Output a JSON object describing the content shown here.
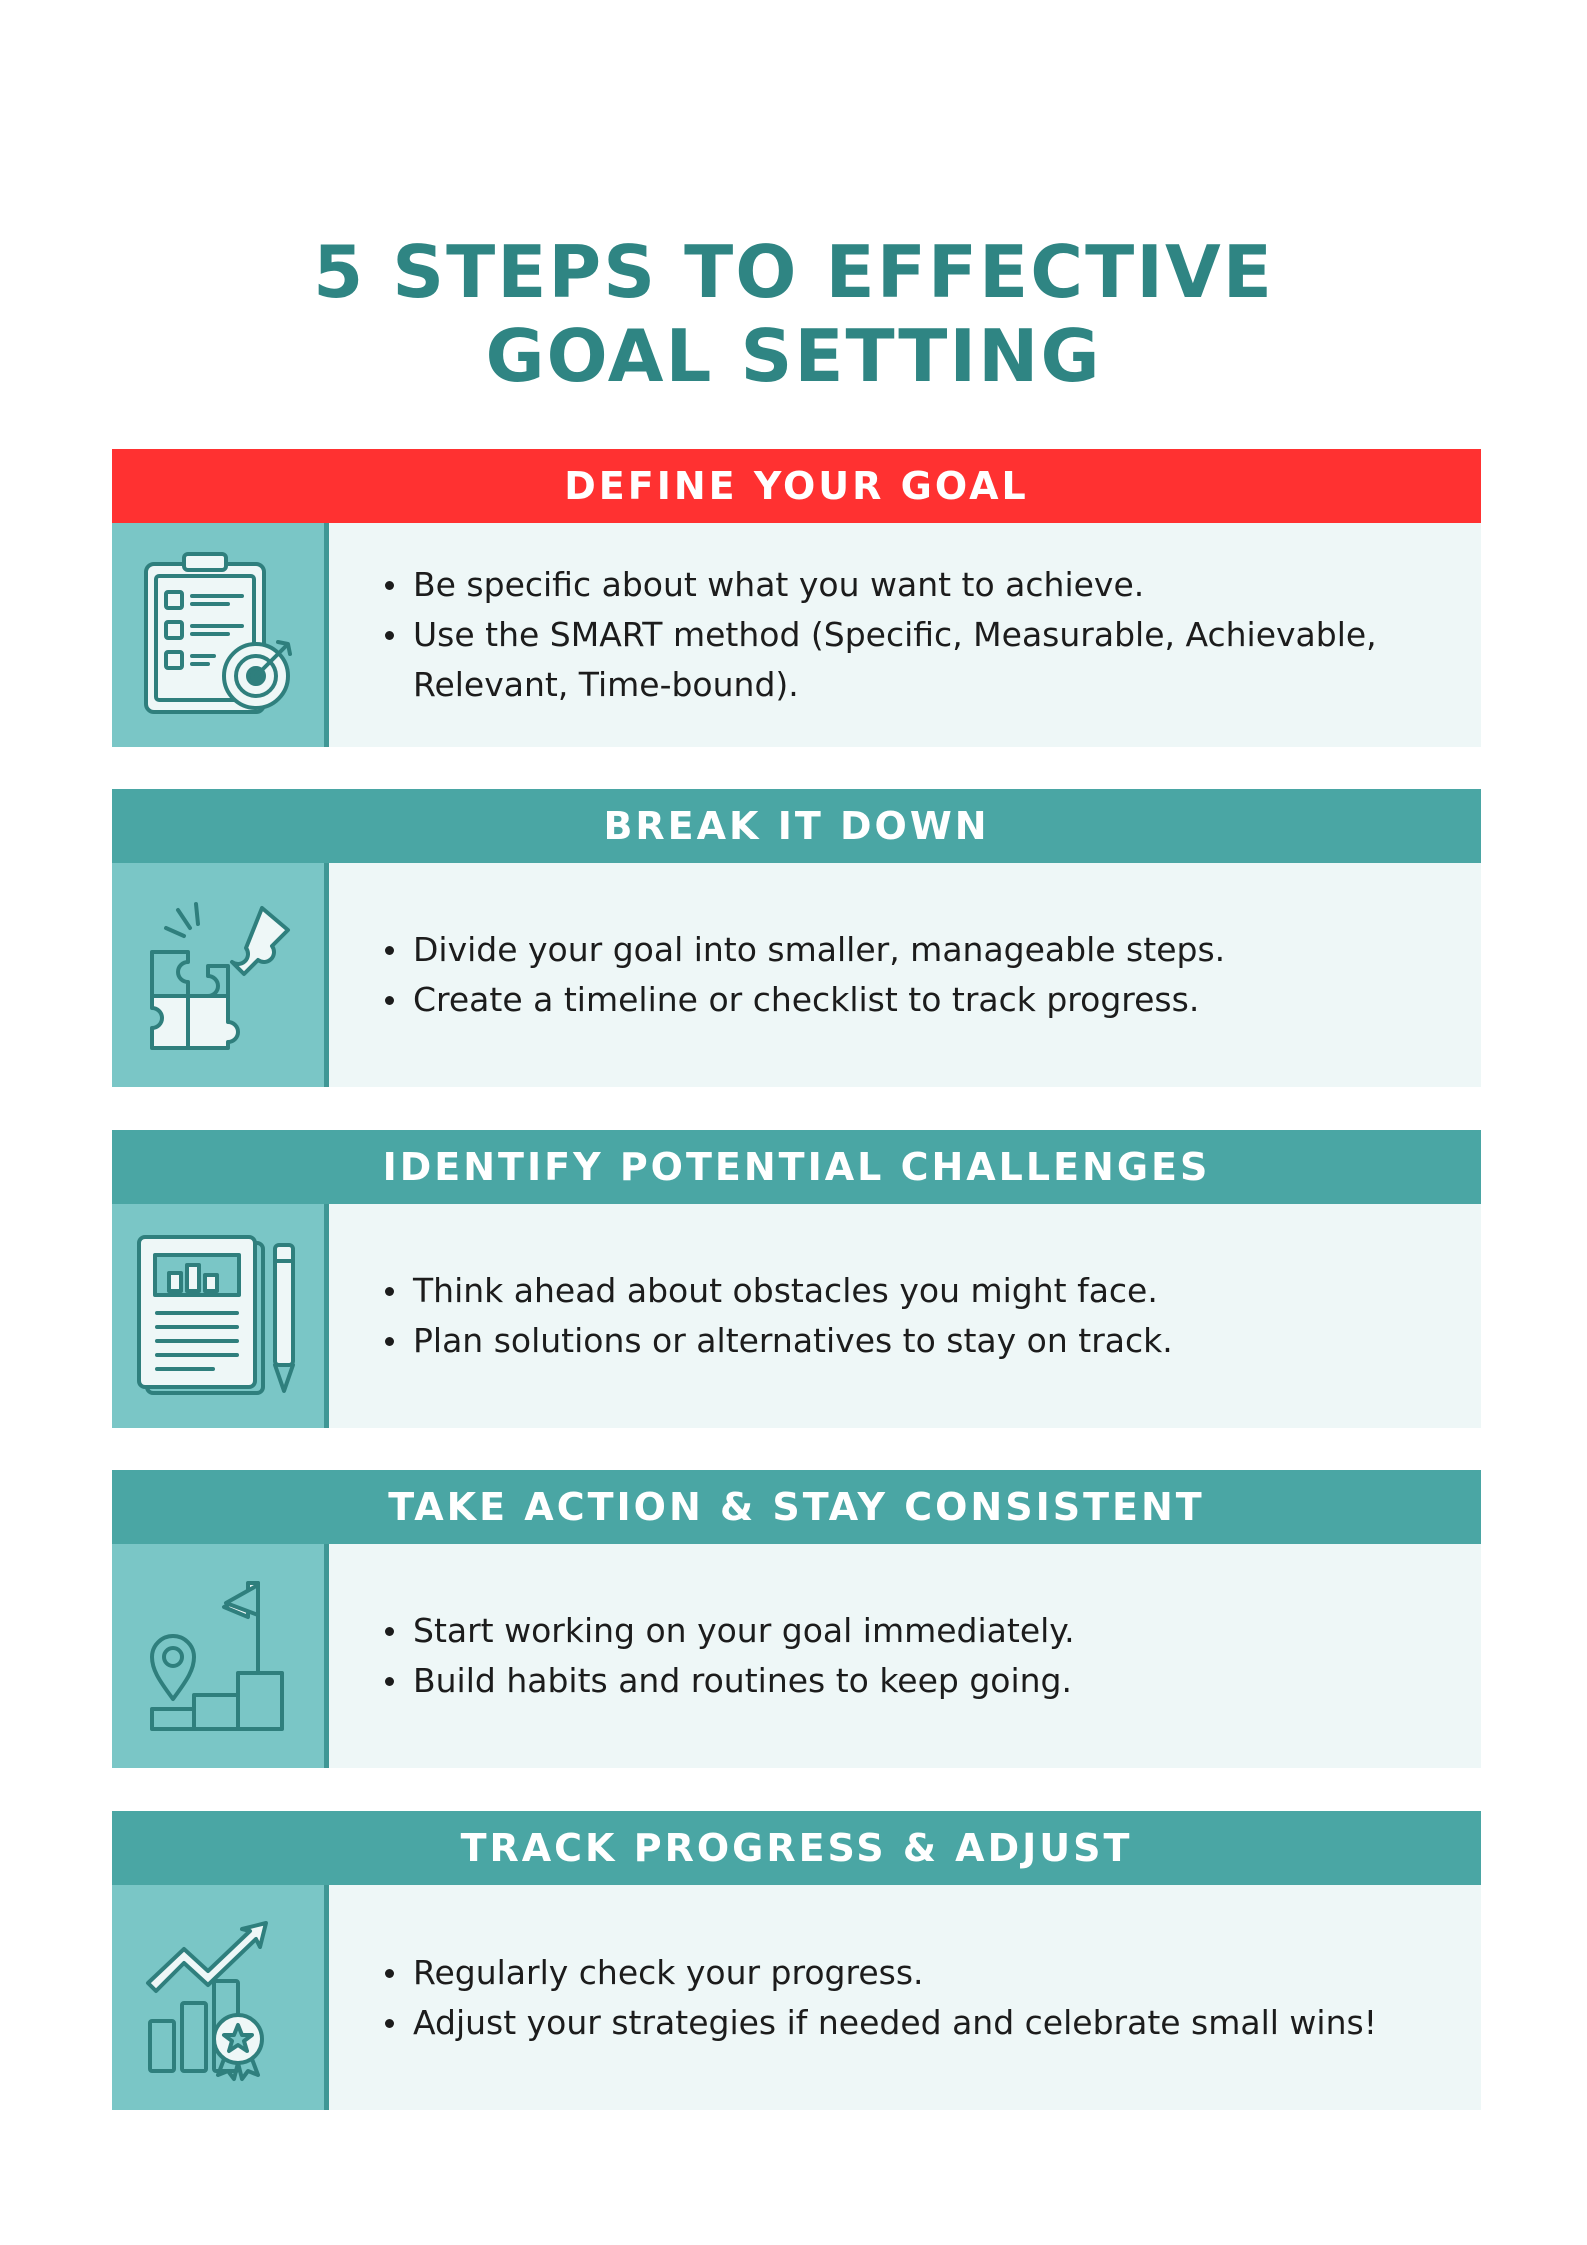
{
  "title": {
    "line1": "5 STEPS TO EFFECTIVE",
    "line2": "GOAL SETTING"
  },
  "colors": {
    "title": "#2f8583",
    "highlight_header": "#ff3131",
    "header": "#4aa6a4",
    "icon_panel": "#7ac6c6",
    "text_panel": "#eef7f7"
  },
  "steps": [
    {
      "heading": "DEFINE YOUR GOAL",
      "icon": "clipboard-target-icon",
      "bullets": [
        "Be specific about what you want to achieve.",
        "Use the SMART method (Specific, Measurable, Achievable, Relevant, Time-bound)."
      ]
    },
    {
      "heading": "BREAK IT DOWN",
      "icon": "puzzle-icon",
      "bullets": [
        "Divide your goal into smaller, manageable steps.",
        "Create a timeline or checklist to track progress."
      ]
    },
    {
      "heading": "IDENTIFY POTENTIAL CHALLENGES",
      "icon": "report-pencil-icon",
      "bullets": [
        "Think ahead about obstacles you might face.",
        "Plan solutions or alternatives to stay on track."
      ]
    },
    {
      "heading": "TAKE ACTION & STAY CONSISTENT",
      "icon": "podium-flag-icon",
      "bullets": [
        "Start working on your goal immediately.",
        "Build habits and routines to keep going."
      ]
    },
    {
      "heading": "TRACK PROGRESS & ADJUST",
      "icon": "growth-chart-icon",
      "bullets": [
        "Regularly check your progress.",
        "Adjust your strategies if needed and celebrate small wins!"
      ]
    }
  ]
}
